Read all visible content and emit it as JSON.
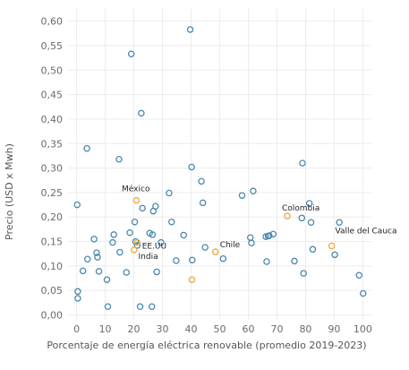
{
  "chart_data": {
    "type": "scatter",
    "xlabel": "Porcentaje de energía eléctrica renovable (promedio 2019-2023)",
    "ylabel": "Precio (USD x Mwh)",
    "xlim": [
      -3,
      103
    ],
    "ylim": [
      -0.01,
      0.625
    ],
    "xticks": [
      "0",
      "10",
      "20",
      "30",
      "40",
      "50",
      "60",
      "70",
      "80",
      "90",
      "100"
    ],
    "xtick_values": [
      0,
      10,
      20,
      30,
      40,
      50,
      60,
      70,
      80,
      90,
      100
    ],
    "yticks": [
      "0,00",
      "0,05",
      "0,10",
      "0,15",
      "0,20",
      "0,25",
      "0,30",
      "0,35",
      "0,40",
      "0,45",
      "0,50",
      "0,55",
      "0,60"
    ],
    "ytick_values": [
      0,
      0.05,
      0.1,
      0.15,
      0.2,
      0.25,
      0.3,
      0.35,
      0.4,
      0.45,
      0.5,
      0.55,
      0.6
    ],
    "grid": true,
    "colors": {
      "others": "#4a88ad",
      "highlight": "#f0a63a"
    },
    "series": [
      {
        "color": "#4a88ad",
        "points": [
          [
            0.2,
            0.225
          ],
          [
            0.4,
            0.048
          ],
          [
            0.4,
            0.034
          ],
          [
            2.2,
            0.09
          ],
          [
            3.6,
            0.34
          ],
          [
            3.8,
            0.114
          ],
          [
            6.1,
            0.155
          ],
          [
            7.0,
            0.127
          ],
          [
            7.3,
            0.118
          ],
          [
            7.8,
            0.089
          ],
          [
            10.6,
            0.072
          ],
          [
            10.9,
            0.017
          ],
          [
            12.6,
            0.148
          ],
          [
            13.0,
            0.164
          ],
          [
            14.8,
            0.318
          ],
          [
            15.1,
            0.128
          ],
          [
            17.4,
            0.087
          ],
          [
            18.6,
            0.168
          ],
          [
            19.1,
            0.533
          ],
          [
            20.3,
            0.19
          ],
          [
            20.6,
            0.15
          ],
          [
            21.2,
            0.142
          ],
          [
            22.2,
            0.017
          ],
          [
            22.6,
            0.412
          ],
          [
            23.0,
            0.218
          ],
          [
            25.5,
            0.167
          ],
          [
            26.3,
            0.017
          ],
          [
            26.5,
            0.164
          ],
          [
            26.8,
            0.212
          ],
          [
            27.6,
            0.222
          ],
          [
            28.0,
            0.088
          ],
          [
            29.5,
            0.148
          ],
          [
            32.3,
            0.249
          ],
          [
            33.2,
            0.19
          ],
          [
            34.8,
            0.111
          ],
          [
            37.4,
            0.163
          ],
          [
            39.7,
            0.583
          ],
          [
            40.2,
            0.302
          ],
          [
            40.4,
            0.112
          ],
          [
            43.6,
            0.273
          ],
          [
            44.1,
            0.229
          ],
          [
            44.9,
            0.138
          ],
          [
            51.2,
            0.115
          ],
          [
            57.8,
            0.244
          ],
          [
            60.7,
            0.158
          ],
          [
            61.1,
            0.147
          ],
          [
            61.7,
            0.253
          ],
          [
            66.1,
            0.16
          ],
          [
            66.4,
            0.109
          ],
          [
            66.9,
            0.161
          ],
          [
            67.3,
            0.162
          ],
          [
            68.7,
            0.165
          ],
          [
            76.1,
            0.11
          ],
          [
            78.7,
            0.198
          ],
          [
            78.9,
            0.31
          ],
          [
            79.3,
            0.085
          ],
          [
            81.3,
            0.228
          ],
          [
            81.9,
            0.189
          ],
          [
            82.5,
            0.134
          ],
          [
            90.2,
            0.123
          ],
          [
            91.8,
            0.189
          ],
          [
            98.7,
            0.081
          ],
          [
            100.1,
            0.044
          ]
        ]
      },
      {
        "color": "#f0a63a",
        "points": [
          [
            20.1,
            0.133
          ],
          [
            20.9,
            0.234
          ],
          [
            21.2,
            0.148
          ],
          [
            40.3,
            0.072
          ],
          [
            48.5,
            0.129
          ],
          [
            73.6,
            0.202
          ],
          [
            89.1,
            0.141
          ]
        ]
      }
    ],
    "annotations": [
      {
        "text": "México",
        "x": 21.0,
        "y": 0.234
      },
      {
        "text": "EE.UU",
        "x": 21.3,
        "y": 0.148
      },
      {
        "text": "India",
        "x": 20.3,
        "y": 0.133
      },
      {
        "text": "Chile",
        "x": 48.5,
        "y": 0.129
      },
      {
        "text": "Colombia",
        "x": 73.6,
        "y": 0.202
      },
      {
        "text": "Valle del Cauca",
        "x": 89.1,
        "y": 0.141
      }
    ]
  }
}
